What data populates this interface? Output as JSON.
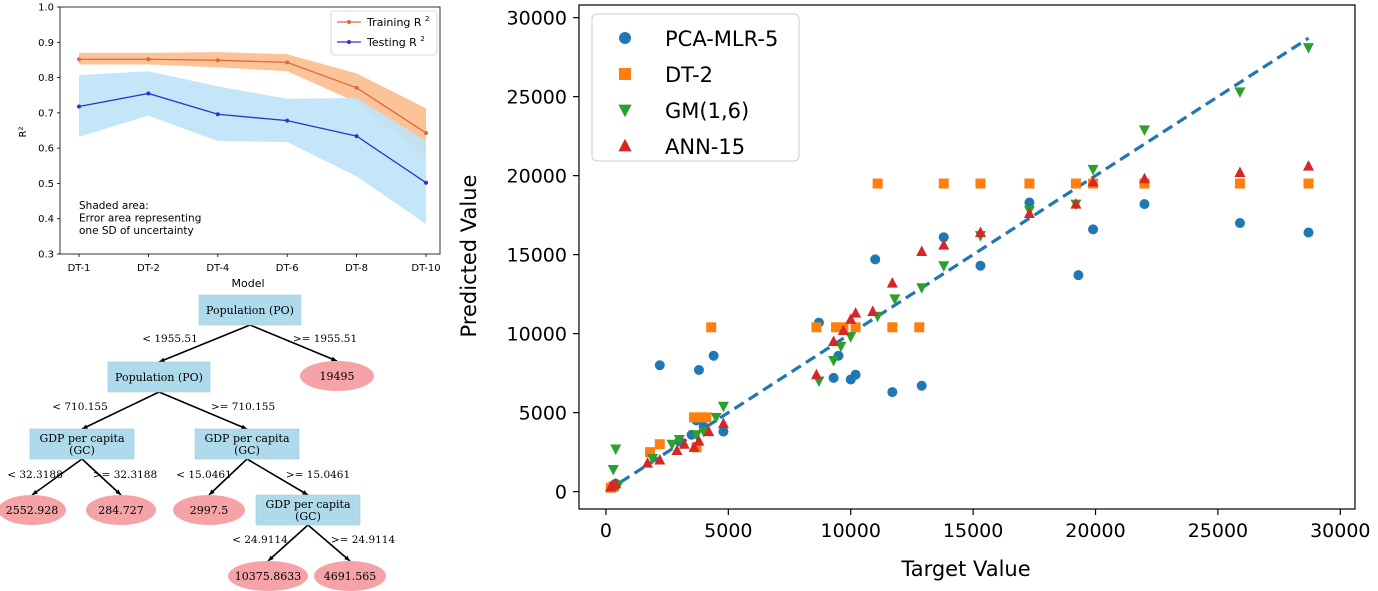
{
  "chart_data": [
    {
      "type": "line",
      "xlabel": "Model",
      "ylabel": "R²",
      "categories": [
        "DT-1",
        "DT-2",
        "DT-4",
        "DT-6",
        "DT-8",
        "DT-10"
      ],
      "ylim": [
        0.3,
        1.0
      ],
      "yticks": [
        "0.3",
        "0.4",
        "0.5",
        "0.6",
        "0.7",
        "0.8",
        "0.9",
        "1.0"
      ],
      "legend_position": "top-right",
      "series": [
        {
          "name": "Training R",
          "sup": "2",
          "color": "#dd6a3a",
          "values": [
            0.852,
            0.852,
            0.849,
            0.843,
            0.771,
            0.643
          ],
          "band_lower": [
            0.837,
            0.837,
            0.829,
            0.818,
            0.73,
            0.575
          ],
          "band_upper": [
            0.87,
            0.87,
            0.872,
            0.866,
            0.812,
            0.713
          ],
          "band_color": "#fbb987"
        },
        {
          "name": "Testing R",
          "sup": "2",
          "color": "#2a36c8",
          "values": [
            0.718,
            0.755,
            0.696,
            0.678,
            0.634,
            0.502
          ],
          "band_lower": [
            0.632,
            0.692,
            0.62,
            0.617,
            0.52,
            0.385
          ],
          "band_upper": [
            0.807,
            0.818,
            0.775,
            0.74,
            0.742,
            0.62
          ],
          "band_color": "#bfe3f8"
        }
      ],
      "annotation": [
        "Shaded area:",
        "Error area representing",
        "one SD of uncertainty"
      ]
    },
    {
      "type": "scatter",
      "xlabel": "Target Value",
      "ylabel": "Predicted Value",
      "xlim": [
        -1100,
        30600
      ],
      "ylim": [
        -1100,
        30800
      ],
      "xticks": [
        0,
        5000,
        10000,
        15000,
        20000,
        25000,
        30000
      ],
      "yticks": [
        0,
        5000,
        10000,
        15000,
        20000,
        25000,
        30000
      ],
      "legend_position": "top-left",
      "reference_line": {
        "x": [
          0,
          28700
        ],
        "y": [
          0,
          28700
        ],
        "color": "#1f77b4",
        "style": "dashed"
      },
      "series": [
        {
          "name": "PCA-MLR-5",
          "marker": "circle",
          "color": "#1f77b4",
          "x": [
            200,
            300,
            400,
            2200,
            3700,
            3800,
            4400,
            4800,
            8700,
            9300,
            9500,
            10000,
            10200,
            11000,
            11700,
            12900,
            13800,
            15300,
            17300,
            19300,
            19900,
            22000,
            25900,
            28700,
            3000,
            3500,
            4000
          ],
          "y": [
            300,
            400,
            500,
            8000,
            4500,
            7700,
            8600,
            3800,
            10700,
            7200,
            8600,
            7100,
            7400,
            14700,
            6300,
            6700,
            16100,
            14300,
            18300,
            13700,
            16600,
            18200,
            17000,
            16400,
            3200,
            3600,
            4100
          ]
        },
        {
          "name": "DT-2",
          "marker": "square",
          "color": "#ff7f0e",
          "x": [
            200,
            300,
            1800,
            2200,
            3600,
            3700,
            3900,
            4100,
            4300,
            8600,
            9400,
            9700,
            10200,
            11100,
            11700,
            12800,
            13800,
            15300,
            17300,
            19200,
            19900,
            22000,
            25900,
            28700
          ],
          "y": [
            250,
            300,
            2500,
            3000,
            4700,
            2800,
            4700,
            4700,
            10400,
            10400,
            10400,
            10400,
            10400,
            19500,
            10400,
            10400,
            19500,
            19500,
            19500,
            19500,
            19500,
            19500,
            19500,
            19500
          ]
        },
        {
          "name": "GM(1,6)",
          "marker": "triangle-down",
          "color": "#2ca02c",
          "x": [
            300,
            400,
            500,
            1900,
            2700,
            3000,
            3700,
            4000,
            4500,
            4800,
            8700,
            9300,
            9600,
            10000,
            11100,
            11800,
            12900,
            13800,
            15300,
            17300,
            19200,
            19900,
            22000,
            25900,
            28700
          ],
          "y": [
            1400,
            2700,
            400,
            2100,
            3000,
            3300,
            3600,
            3800,
            4700,
            5400,
            7000,
            8300,
            9200,
            9800,
            11100,
            12200,
            12900,
            14300,
            16200,
            17800,
            18200,
            20400,
            22900,
            25300,
            28100
          ]
        },
        {
          "name": "ANN-15",
          "marker": "triangle-up",
          "color": "#d62728",
          "x": [
            200,
            300,
            400,
            1700,
            2200,
            2900,
            3200,
            3600,
            3800,
            4200,
            4800,
            8600,
            9300,
            9700,
            10000,
            10200,
            10900,
            11700,
            12900,
            13800,
            15300,
            17300,
            19200,
            19900,
            22000,
            25900,
            28700
          ],
          "y": [
            300,
            400,
            500,
            1800,
            2000,
            2600,
            3000,
            2800,
            3200,
            3800,
            4300,
            7400,
            9500,
            10200,
            10900,
            11300,
            11400,
            13200,
            15200,
            15600,
            16400,
            17600,
            18200,
            19600,
            19800,
            20200,
            20600
          ]
        }
      ]
    }
  ],
  "decision_tree": {
    "nodes": [
      {
        "id": "n1",
        "label": [
          "Population (PO)"
        ],
        "kind": "split"
      },
      {
        "id": "n2",
        "label": [
          "Population (PO)"
        ],
        "kind": "split"
      },
      {
        "id": "leaf-19495",
        "label": [
          "19495"
        ],
        "kind": "leaf"
      },
      {
        "id": "n3",
        "label": [
          "GDP per capita",
          "(GC)"
        ],
        "kind": "split"
      },
      {
        "id": "n4",
        "label": [
          "GDP per capita",
          "(GC)"
        ],
        "kind": "split"
      },
      {
        "id": "leaf-2552",
        "label": [
          "2552.928"
        ],
        "kind": "leaf"
      },
      {
        "id": "leaf-284",
        "label": [
          "284.727"
        ],
        "kind": "leaf"
      },
      {
        "id": "leaf-2997",
        "label": [
          "2997.5"
        ],
        "kind": "leaf"
      },
      {
        "id": "n5",
        "label": [
          "GDP per capita",
          "(GC)"
        ],
        "kind": "split"
      },
      {
        "id": "leaf-10375",
        "label": [
          "10375.8633"
        ],
        "kind": "leaf"
      },
      {
        "id": "leaf-4691",
        "label": [
          "4691.565"
        ],
        "kind": "leaf"
      }
    ],
    "edges": [
      {
        "from": "n1",
        "to": "n2",
        "label": "< 1955.51"
      },
      {
        "from": "n1",
        "to": "leaf-19495",
        "label": ">= 1955.51"
      },
      {
        "from": "n2",
        "to": "n3",
        "label": "< 710.155"
      },
      {
        "from": "n2",
        "to": "n4",
        "label": ">= 710.155"
      },
      {
        "from": "n3",
        "to": "leaf-2552",
        "label": "< 32.3188"
      },
      {
        "from": "n3",
        "to": "leaf-284",
        "label": ">= 32.3188"
      },
      {
        "from": "n4",
        "to": "leaf-2997",
        "label": "< 15.0461"
      },
      {
        "from": "n4",
        "to": "n5",
        "label": ">= 15.0461"
      },
      {
        "from": "n5",
        "to": "leaf-10375",
        "label": "< 24.9114"
      },
      {
        "from": "n5",
        "to": "leaf-4691",
        "label": ">= 24.9114"
      }
    ],
    "colors": {
      "split": "#aedaeb",
      "leaf": "#f5a3a7"
    }
  }
}
